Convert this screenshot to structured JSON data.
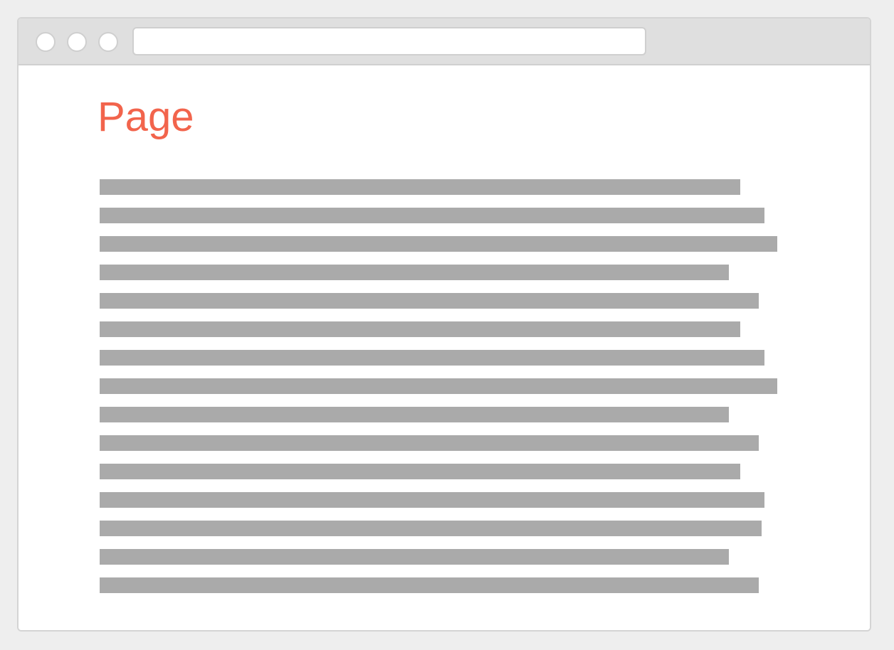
{
  "browser": {
    "address_bar_value": "",
    "window_buttons": [
      "window-button-1",
      "window-button-2",
      "window-button-3"
    ]
  },
  "page": {
    "title": "Page",
    "title_color": "#f2644c",
    "placeholder_line_color": "#aaaaaa",
    "text_placeholder_line_count": 15
  }
}
